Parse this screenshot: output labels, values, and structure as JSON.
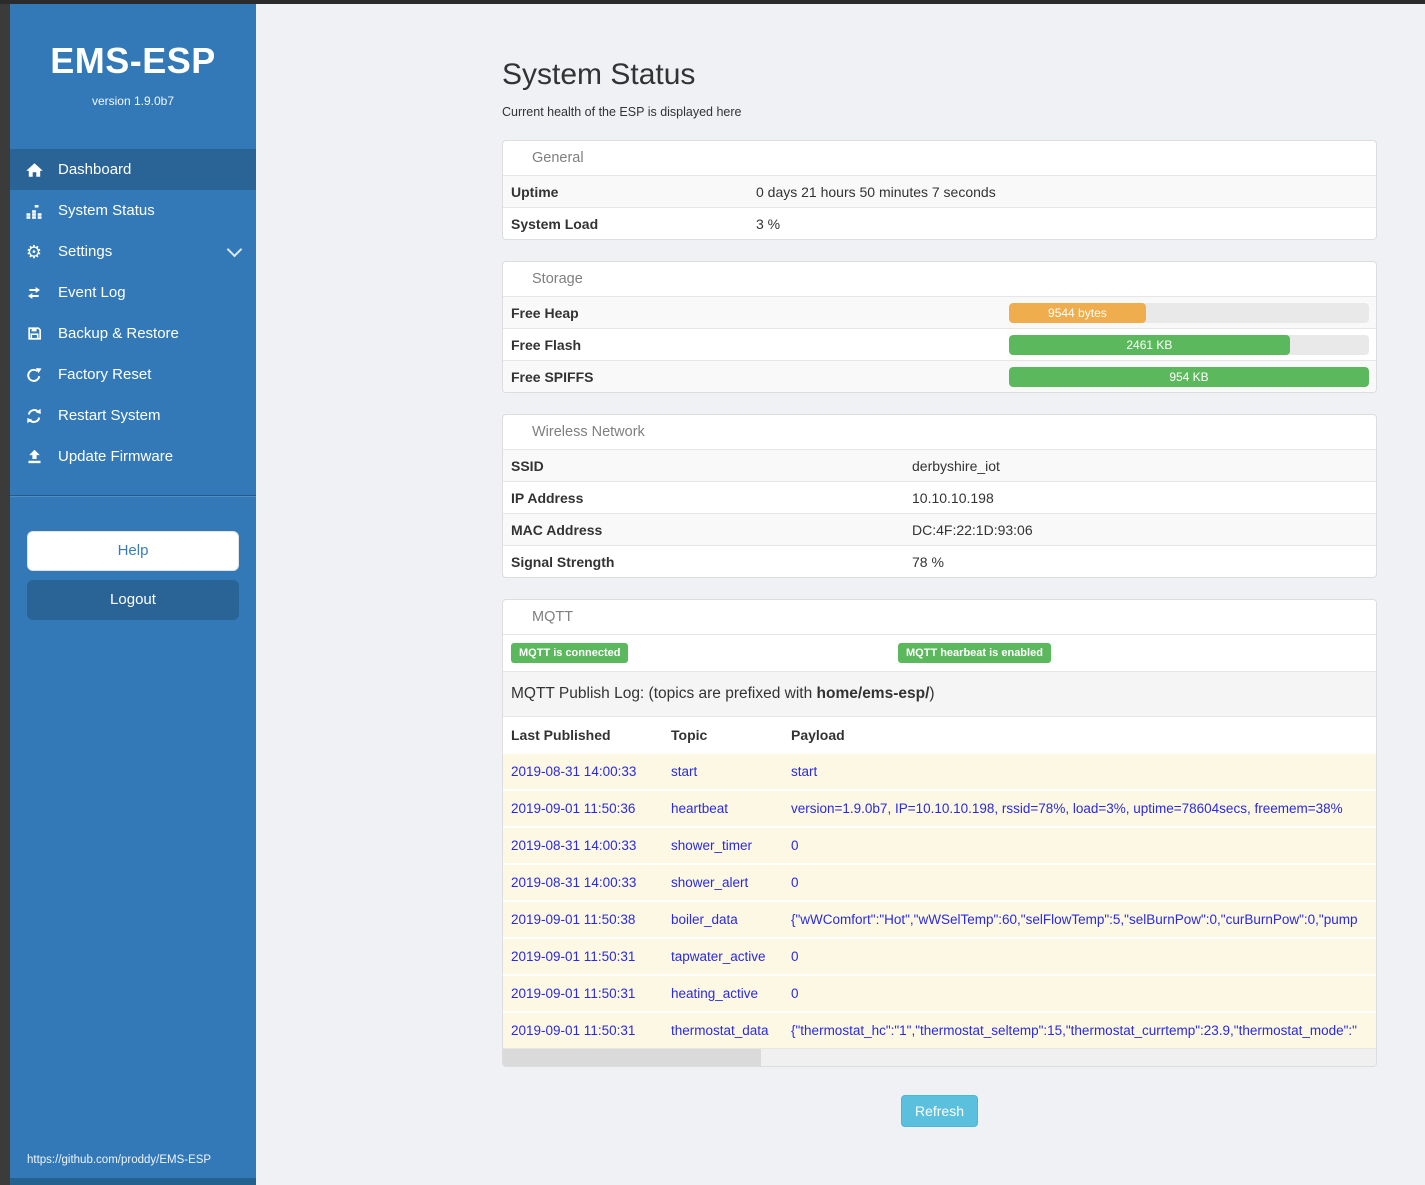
{
  "sidebar": {
    "title": "EMS-ESP",
    "version": "version 1.9.0b7",
    "items": [
      {
        "label": "Dashboard",
        "icon": "home-icon",
        "active": true,
        "chevron": false
      },
      {
        "label": "System Status",
        "icon": "system-status-icon",
        "active": false,
        "chevron": false
      },
      {
        "label": "Settings",
        "icon": "gear-icon",
        "active": false,
        "chevron": true
      },
      {
        "label": "Event Log",
        "icon": "exchange-icon",
        "active": false,
        "chevron": false
      },
      {
        "label": "Backup & Restore",
        "icon": "save-icon",
        "active": false,
        "chevron": false
      },
      {
        "label": "Factory Reset",
        "icon": "rotate-right-icon",
        "active": false,
        "chevron": false
      },
      {
        "label": "Restart System",
        "icon": "refresh-icon",
        "active": false,
        "chevron": false
      },
      {
        "label": "Update Firmware",
        "icon": "upload-icon",
        "active": false,
        "chevron": false
      }
    ],
    "help_label": "Help",
    "logout_label": "Logout",
    "footer_link": "https://github.com/proddy/EMS-ESP"
  },
  "header": {
    "title": "System Status",
    "subtitle": "Current health of the ESP is displayed here"
  },
  "panels": {
    "general": {
      "title": "General",
      "rows": [
        {
          "label": "Uptime",
          "value": "0 days 21 hours 50 minutes 7 seconds"
        },
        {
          "label": "System Load",
          "value": "3 %"
        }
      ]
    },
    "storage": {
      "title": "Storage",
      "rows": [
        {
          "label": "Free Heap",
          "bar_label": "9544 bytes",
          "percent": 38,
          "color": "#f0ad4e"
        },
        {
          "label": "Free Flash",
          "bar_label": "2461 KB",
          "percent": 78,
          "color": "#5cb85c"
        },
        {
          "label": "Free SPIFFS",
          "bar_label": "954 KB",
          "percent": 100,
          "color": "#5cb85c"
        }
      ]
    },
    "wireless": {
      "title": "Wireless Network",
      "rows": [
        {
          "label": "SSID",
          "value": "derbyshire_iot"
        },
        {
          "label": "IP Address",
          "value": "10.10.10.198"
        },
        {
          "label": "MAC Address",
          "value": "DC:4F:22:1D:93:06"
        },
        {
          "label": "Signal Strength",
          "value": "78 %"
        }
      ]
    },
    "mqtt": {
      "title": "MQTT",
      "badges": [
        "MQTT is connected",
        "MQTT hearbeat is enabled"
      ],
      "log_intro_prefix": "MQTT Publish Log: (topics are prefixed with ",
      "log_intro_bold": "home/ems-esp/",
      "log_intro_suffix": ")",
      "columns": [
        "Last Published",
        "Topic",
        "Payload"
      ],
      "rows": [
        [
          "2019-08-31 14:00:33",
          "start",
          "start"
        ],
        [
          "2019-09-01 11:50:36",
          "heartbeat",
          "version=1.9.0b7, IP=10.10.10.198, rssid=78%, load=3%, uptime=78604secs, freemem=38%"
        ],
        [
          "2019-08-31 14:00:33",
          "shower_timer",
          "0"
        ],
        [
          "2019-08-31 14:00:33",
          "shower_alert",
          "0"
        ],
        [
          "2019-09-01 11:50:38",
          "boiler_data",
          "{\"wWComfort\":\"Hot\",\"wWSelTemp\":60,\"selFlowTemp\":5,\"selBurnPow\":0,\"curBurnPow\":0,\"pump"
        ],
        [
          "2019-09-01 11:50:31",
          "tapwater_active",
          "0"
        ],
        [
          "2019-09-01 11:50:31",
          "heating_active",
          "0"
        ],
        [
          "2019-09-01 11:50:31",
          "thermostat_data",
          "{\"thermostat_hc\":\"1\",\"thermostat_seltemp\":15,\"thermostat_currtemp\":23.9,\"thermostat_mode\":\""
        ]
      ]
    }
  },
  "refresh_label": "Refresh",
  "colors": {
    "sidebar_blue": "#3379b7",
    "sidebar_active": "#2a6496",
    "success_green": "#5cb85c",
    "warning_orange": "#f0ad4e",
    "info_blue": "#5bc0de",
    "log_row_bg": "#fcf8e3",
    "log_text_blue": "#2a2ae0"
  }
}
